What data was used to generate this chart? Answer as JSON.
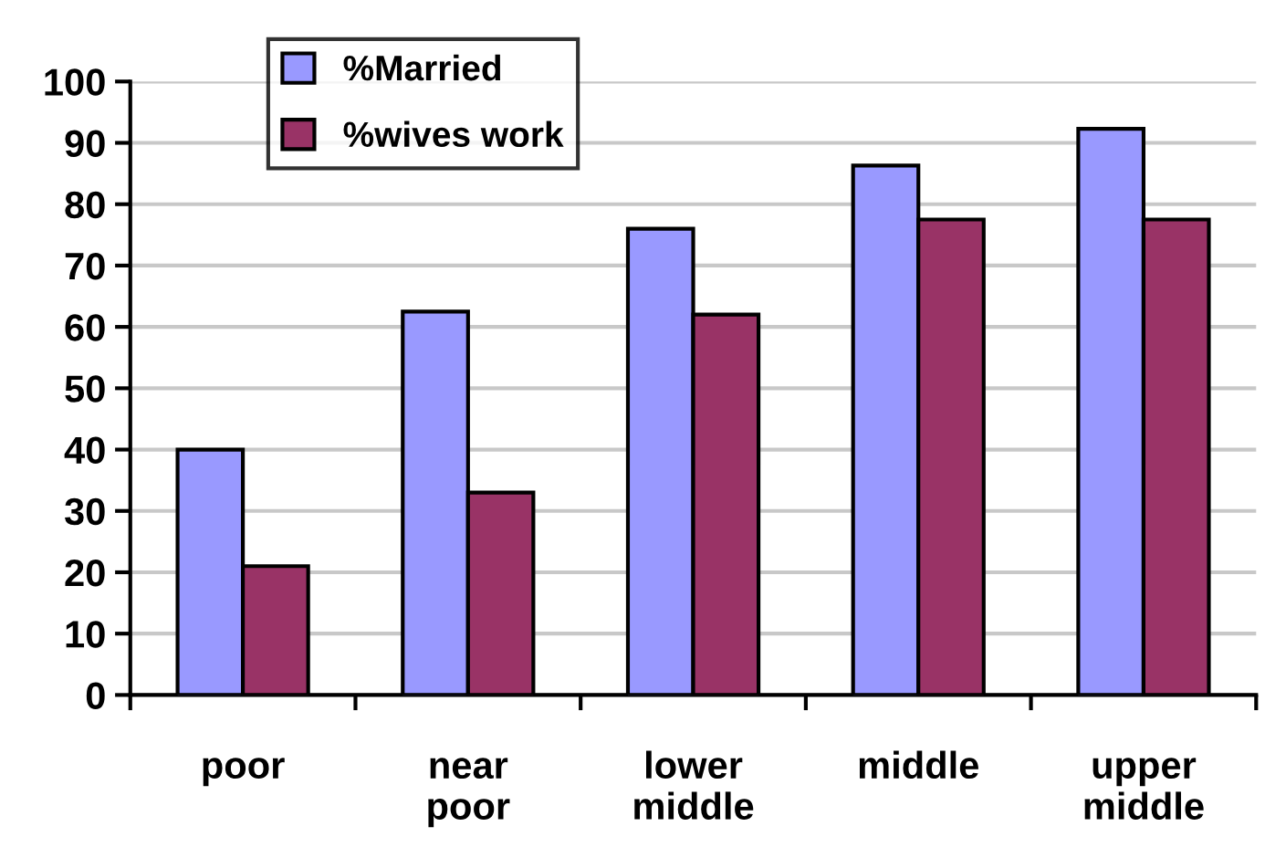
{
  "chart_data": {
    "type": "bar",
    "categories": [
      "poor",
      "near\npoor",
      "lower\nmiddle",
      "middle",
      "upper\nmiddle"
    ],
    "series": [
      {
        "name": "%Married",
        "color": "#9999ff",
        "values": [
          40,
          62.5,
          76,
          86.3,
          92.3
        ]
      },
      {
        "name": "%wives work",
        "color": "#993366",
        "values": [
          21,
          33,
          62,
          77.5,
          77.5
        ]
      }
    ],
    "ylim": [
      0,
      100
    ],
    "yticks": [
      0,
      10,
      20,
      30,
      40,
      50,
      60,
      70,
      80,
      90,
      100
    ],
    "grid": "y",
    "legend": "top left"
  }
}
